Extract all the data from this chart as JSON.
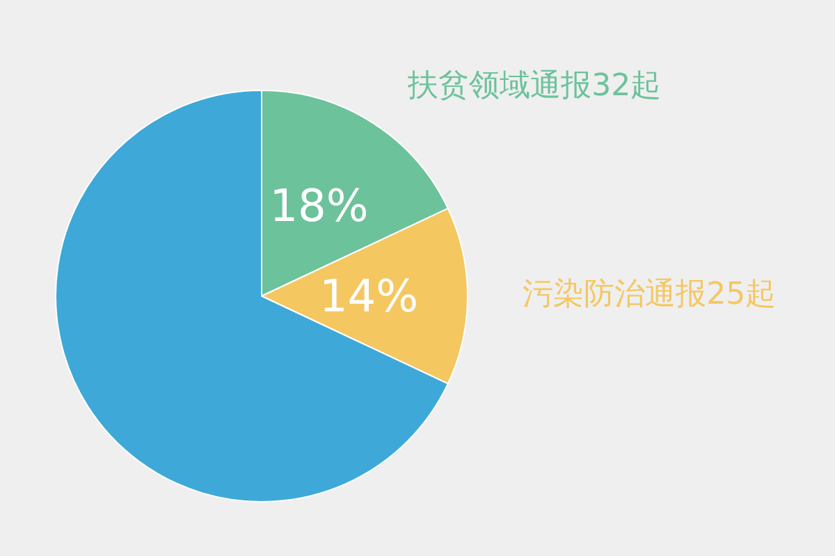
{
  "chart_data": {
    "type": "pie",
    "categories": [
      "扶贫领域通报32起",
      "污染防治通报25起",
      null
    ],
    "values": [
      18,
      14,
      68
    ],
    "colors": [
      "#6cc29b",
      "#f5c761",
      "#3ea9d8"
    ],
    "value_labels": [
      "18%",
      "14%",
      null
    ]
  }
}
